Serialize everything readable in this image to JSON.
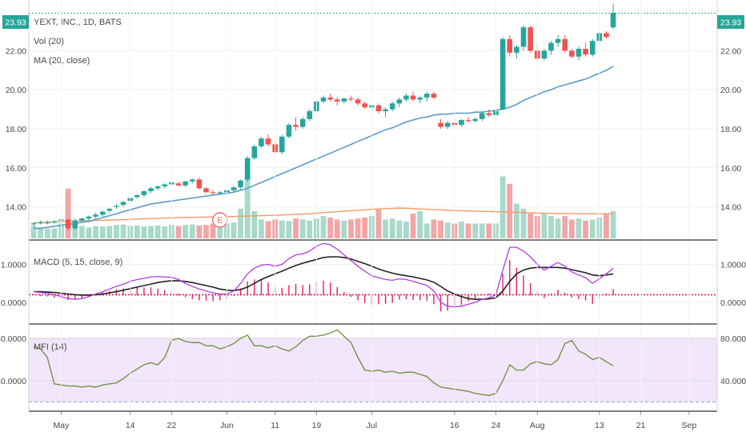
{
  "chart_data": [
    {
      "type": "candlestick",
      "panel": "price",
      "title": "YEXT, INC., 1D, BATS",
      "legend": [
        "Vol (20)",
        "MA (20, close)"
      ],
      "price_tag": "23.93",
      "y_ticks": [
        "14.00",
        "16.00",
        "18.00",
        "20.00",
        "22.00"
      ],
      "ylim": [
        12.3,
        24.6
      ],
      "x_ticks": [
        "May",
        "14",
        "22",
        "Jun",
        "11",
        "19",
        "Jul",
        "16",
        "24",
        "Aug",
        "13",
        "21",
        "Sep"
      ],
      "event_marker": "E",
      "candles": [
        [
          13.1,
          13.2,
          13.0,
          13.15
        ],
        [
          13.2,
          13.3,
          13.1,
          13.2
        ],
        [
          13.2,
          13.3,
          13.1,
          13.2
        ],
        [
          13.2,
          13.3,
          13.1,
          13.25
        ],
        [
          13.3,
          13.45,
          13.1,
          13.35
        ],
        [
          13.35,
          13.4,
          12.8,
          12.9
        ],
        [
          12.9,
          13.4,
          12.8,
          13.3
        ],
        [
          13.3,
          13.45,
          13.2,
          13.4
        ],
        [
          13.4,
          13.55,
          13.3,
          13.5
        ],
        [
          13.5,
          13.7,
          13.4,
          13.6
        ],
        [
          13.6,
          13.8,
          13.5,
          13.75
        ],
        [
          13.8,
          13.95,
          13.7,
          13.9
        ],
        [
          14.0,
          14.15,
          13.9,
          14.05
        ],
        [
          14.1,
          14.3,
          14.0,
          14.25
        ],
        [
          14.3,
          14.5,
          14.2,
          14.45
        ],
        [
          14.5,
          14.65,
          14.4,
          14.6
        ],
        [
          14.6,
          14.85,
          14.5,
          14.8
        ],
        [
          14.8,
          15.0,
          14.7,
          14.95
        ],
        [
          14.95,
          15.1,
          14.85,
          15.05
        ],
        [
          15.05,
          15.2,
          14.95,
          15.15
        ],
        [
          15.15,
          15.3,
          15.05,
          15.25
        ],
        [
          15.2,
          15.3,
          15.05,
          15.1
        ],
        [
          15.1,
          15.35,
          15.0,
          15.3
        ],
        [
          15.3,
          15.45,
          15.2,
          15.4
        ],
        [
          15.4,
          15.5,
          14.9,
          14.95
        ],
        [
          14.95,
          15.0,
          14.7,
          14.75
        ],
        [
          14.75,
          14.85,
          14.6,
          14.7
        ],
        [
          14.7,
          14.8,
          14.6,
          14.75
        ],
        [
          14.75,
          14.9,
          14.65,
          14.85
        ],
        [
          14.85,
          15.05,
          14.75,
          15.0
        ],
        [
          15.0,
          15.4,
          14.9,
          15.35
        ],
        [
          15.4,
          16.6,
          15.3,
          16.5
        ],
        [
          16.5,
          17.2,
          16.4,
          17.1
        ],
        [
          17.1,
          17.6,
          17.0,
          17.5
        ],
        [
          17.5,
          17.7,
          17.1,
          17.2
        ],
        [
          17.2,
          17.4,
          16.7,
          16.8
        ],
        [
          16.8,
          17.7,
          16.7,
          17.6
        ],
        [
          17.6,
          18.3,
          17.5,
          18.2
        ],
        [
          18.2,
          18.6,
          17.9,
          18.1
        ],
        [
          18.1,
          18.6,
          18.0,
          18.5
        ],
        [
          18.5,
          19.0,
          18.4,
          18.9
        ],
        [
          18.9,
          19.5,
          18.8,
          19.4
        ],
        [
          19.4,
          19.7,
          19.3,
          19.6
        ],
        [
          19.6,
          19.8,
          19.4,
          19.5
        ],
        [
          19.5,
          19.6,
          19.2,
          19.4
        ],
        [
          19.4,
          19.6,
          19.3,
          19.55
        ],
        [
          19.55,
          19.7,
          19.4,
          19.5
        ],
        [
          19.5,
          19.6,
          19.2,
          19.3
        ],
        [
          19.3,
          19.4,
          19.0,
          19.1
        ],
        [
          19.1,
          19.3,
          18.9,
          19.2
        ],
        [
          19.2,
          19.3,
          18.8,
          18.9
        ],
        [
          18.9,
          19.1,
          18.6,
          19.0
        ],
        [
          19.0,
          19.4,
          18.9,
          19.3
        ],
        [
          19.3,
          19.6,
          19.1,
          19.5
        ],
        [
          19.5,
          19.8,
          19.4,
          19.7
        ],
        [
          19.7,
          19.9,
          19.4,
          19.5
        ],
        [
          19.5,
          19.7,
          19.3,
          19.6
        ],
        [
          19.6,
          19.9,
          19.4,
          19.8
        ],
        [
          19.8,
          19.9,
          19.5,
          19.6
        ],
        [
          18.3,
          18.5,
          18.0,
          18.1
        ],
        [
          18.1,
          18.4,
          18.0,
          18.3
        ],
        [
          18.3,
          18.5,
          18.1,
          18.2
        ],
        [
          18.2,
          18.5,
          18.1,
          18.45
        ],
        [
          18.45,
          18.6,
          18.3,
          18.4
        ],
        [
          18.4,
          18.6,
          18.3,
          18.5
        ],
        [
          18.5,
          18.9,
          18.4,
          18.8
        ],
        [
          18.8,
          19.0,
          18.6,
          18.7
        ],
        [
          18.7,
          19.0,
          18.6,
          18.9
        ],
        [
          19.0,
          22.7,
          19.0,
          22.6
        ],
        [
          22.6,
          22.8,
          21.7,
          21.9
        ],
        [
          21.9,
          22.3,
          21.6,
          22.2
        ],
        [
          22.2,
          23.3,
          22.0,
          23.2
        ],
        [
          23.2,
          23.3,
          21.9,
          22.0
        ],
        [
          22.0,
          22.4,
          21.5,
          21.6
        ],
        [
          21.6,
          22.1,
          21.5,
          22.0
        ],
        [
          22.0,
          22.5,
          21.8,
          22.4
        ],
        [
          22.4,
          22.8,
          22.2,
          22.6
        ],
        [
          22.6,
          22.8,
          21.9,
          22.0
        ],
        [
          22.0,
          22.1,
          21.6,
          21.7
        ],
        [
          21.7,
          22.2,
          21.5,
          22.1
        ],
        [
          22.1,
          22.4,
          21.7,
          21.8
        ],
        [
          21.8,
          22.6,
          21.7,
          22.5
        ],
        [
          22.5,
          23.0,
          22.3,
          22.9
        ],
        [
          22.9,
          23.0,
          22.6,
          22.7
        ],
        [
          23.2,
          24.4,
          23.1,
          23.93
        ]
      ],
      "ma20": [
        12.9,
        12.9,
        12.95,
        13.0,
        13.05,
        13.1,
        13.15,
        13.2,
        13.25,
        13.35,
        13.45,
        13.55,
        13.65,
        13.75,
        13.85,
        13.95,
        14.05,
        14.15,
        14.2,
        14.25,
        14.3,
        14.35,
        14.4,
        14.45,
        14.5,
        14.55,
        14.6,
        14.65,
        14.7,
        14.75,
        14.85,
        14.95,
        15.1,
        15.25,
        15.4,
        15.55,
        15.7,
        15.85,
        16.0,
        16.15,
        16.3,
        16.45,
        16.6,
        16.75,
        16.9,
        17.05,
        17.2,
        17.35,
        17.5,
        17.65,
        17.8,
        17.95,
        18.05,
        18.2,
        18.35,
        18.45,
        18.55,
        18.6,
        18.7,
        18.75,
        18.75,
        18.8,
        18.8,
        18.8,
        18.85,
        18.85,
        18.9,
        18.95,
        19.0,
        19.1,
        19.25,
        19.45,
        19.6,
        19.75,
        19.9,
        20.0,
        20.15,
        20.25,
        20.35,
        20.45,
        20.55,
        20.7,
        20.85,
        21.0,
        21.2
      ],
      "volume": [
        0.25,
        0.22,
        0.2,
        0.2,
        0.3,
        1.0,
        0.3,
        0.25,
        0.22,
        0.25,
        0.24,
        0.25,
        0.27,
        0.28,
        0.25,
        0.26,
        0.24,
        0.25,
        0.26,
        0.24,
        0.27,
        0.25,
        0.27,
        0.28,
        0.26,
        0.27,
        0.3,
        0.28,
        0.3,
        0.32,
        0.6,
        1.25,
        0.55,
        0.38,
        0.35,
        0.38,
        0.36,
        0.35,
        0.4,
        0.38,
        0.36,
        0.4,
        0.45,
        0.42,
        0.38,
        0.36,
        0.38,
        0.4,
        0.42,
        0.45,
        0.6,
        0.38,
        0.4,
        0.36,
        0.34,
        0.5,
        0.55,
        0.3,
        0.38,
        0.36,
        0.32,
        0.3,
        0.34,
        0.3,
        0.3,
        0.3,
        0.3,
        0.3,
        1.25,
        1.1,
        0.7,
        0.6,
        0.5,
        0.45,
        0.5,
        0.45,
        0.4,
        0.45,
        0.38,
        0.4,
        0.36,
        0.38,
        0.42,
        0.5,
        0.55
      ],
      "vol_ma": [
        0.35,
        0.38,
        0.4,
        0.42,
        0.45,
        0.47,
        0.48,
        0.5,
        0.52,
        0.55,
        0.6,
        0.65,
        0.68,
        0.65,
        0.62,
        0.6,
        0.58,
        0.56,
        0.55,
        0.55
      ]
    },
    {
      "type": "line",
      "panel": "macd",
      "title": "MACD (5, 15, close, 9)",
      "y_ticks": [
        "0.0000",
        "1.0000"
      ],
      "ylim": [
        -0.55,
        1.6
      ],
      "macd": [
        0.28,
        0.26,
        0.24,
        0.2,
        0.15,
        0.1,
        0.08,
        0.1,
        0.15,
        0.22,
        0.28,
        0.35,
        0.42,
        0.48,
        0.55,
        0.6,
        0.63,
        0.67,
        0.68,
        0.67,
        0.66,
        0.6,
        0.5,
        0.42,
        0.35,
        0.3,
        0.25,
        0.22,
        0.22,
        0.3,
        0.5,
        0.75,
        0.9,
        0.98,
        1.0,
        0.95,
        1.0,
        1.15,
        1.25,
        1.28,
        1.35,
        1.48,
        1.55,
        1.52,
        1.4,
        1.25,
        1.1,
        0.95,
        0.82,
        0.7,
        0.65,
        0.6,
        0.58,
        0.62,
        0.6,
        0.55,
        0.5,
        0.45,
        0.3,
        0.0,
        -0.1,
        -0.12,
        -0.1,
        -0.05,
        0.0,
        0.08,
        0.12,
        0.2,
        0.85,
        1.45,
        1.45,
        1.35,
        1.2,
        1.0,
        0.85,
        0.95,
        1.05,
        0.95,
        0.8,
        0.72,
        0.65,
        0.5,
        0.62,
        0.75,
        0.9
      ],
      "signal": [
        0.28,
        0.28,
        0.27,
        0.26,
        0.24,
        0.22,
        0.2,
        0.19,
        0.19,
        0.2,
        0.22,
        0.25,
        0.28,
        0.32,
        0.36,
        0.4,
        0.44,
        0.48,
        0.52,
        0.55,
        0.57,
        0.57,
        0.55,
        0.52,
        0.48,
        0.44,
        0.4,
        0.35,
        0.32,
        0.31,
        0.34,
        0.4,
        0.5,
        0.6,
        0.68,
        0.75,
        0.82,
        0.9,
        0.97,
        1.03,
        1.08,
        1.13,
        1.18,
        1.2,
        1.2,
        1.18,
        1.14,
        1.08,
        1.02,
        0.95,
        0.88,
        0.82,
        0.77,
        0.73,
        0.7,
        0.67,
        0.63,
        0.59,
        0.53,
        0.42,
        0.3,
        0.22,
        0.15,
        0.1,
        0.08,
        0.08,
        0.09,
        0.12,
        0.3,
        0.55,
        0.75,
        0.85,
        0.9,
        0.92,
        0.92,
        0.92,
        0.92,
        0.9,
        0.86,
        0.82,
        0.78,
        0.72,
        0.7,
        0.72,
        0.75
      ],
      "histogram": [
        0.0,
        -0.02,
        -0.03,
        -0.06,
        -0.09,
        -0.12,
        -0.12,
        -0.09,
        -0.04,
        0.02,
        0.06,
        0.1,
        0.14,
        0.16,
        0.19,
        0.2,
        0.19,
        0.19,
        0.16,
        0.12,
        0.09,
        0.03,
        -0.05,
        -0.1,
        -0.13,
        -0.14,
        -0.15,
        -0.13,
        -0.1,
        -0.01,
        0.16,
        0.35,
        0.4,
        0.38,
        0.32,
        0.2,
        0.18,
        0.25,
        0.28,
        0.25,
        0.27,
        0.35,
        0.37,
        0.32,
        0.2,
        0.07,
        -0.04,
        -0.13,
        -0.2,
        -0.25,
        -0.23,
        -0.22,
        -0.19,
        -0.11,
        -0.1,
        -0.12,
        -0.13,
        -0.14,
        -0.23,
        -0.42,
        -0.4,
        -0.34,
        -0.25,
        -0.15,
        -0.08,
        0.0,
        0.03,
        0.08,
        0.55,
        0.9,
        0.7,
        0.5,
        0.3,
        0.08,
        -0.07,
        0.03,
        0.13,
        0.05,
        -0.06,
        -0.1,
        -0.13,
        -0.22,
        -0.08,
        0.03,
        0.15
      ]
    },
    {
      "type": "area",
      "panel": "mfi",
      "title": "MFI (14)",
      "y_ticks": [
        "40.0000",
        "80.0000"
      ],
      "ylim": [
        12,
        92
      ],
      "bands": [
        20,
        80
      ],
      "mfi": [
        72,
        70,
        62,
        37,
        36,
        35,
        35,
        34,
        35,
        34,
        36,
        37,
        38,
        42,
        47,
        51,
        55,
        57,
        55,
        62,
        78,
        80,
        77,
        76,
        76,
        73,
        73,
        70,
        72,
        75,
        80,
        83,
        73,
        73,
        71,
        73,
        70,
        68,
        72,
        78,
        82,
        82,
        83,
        85,
        88,
        82,
        76,
        62,
        50,
        49,
        50,
        48,
        49,
        47,
        48,
        48,
        46,
        44,
        38,
        34,
        33,
        32,
        31,
        30,
        28,
        27,
        26,
        28,
        40,
        55,
        50,
        50,
        56,
        58,
        56,
        55,
        60,
        75,
        78,
        68,
        65,
        60,
        62,
        58,
        54
      ]
    }
  ]
}
